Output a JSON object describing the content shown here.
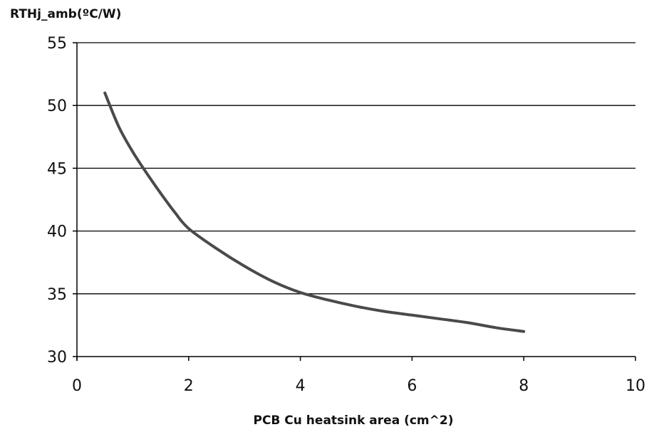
{
  "chart_data": {
    "type": "line",
    "title": "",
    "xlabel": "PCB Cu heatsink area (cm^2)",
    "ylabel": "RTHj_amb(ºC/W)",
    "xlim": [
      0,
      10
    ],
    "ylim": [
      30,
      55
    ],
    "xticks": [
      0,
      2,
      4,
      6,
      8,
      10
    ],
    "yticks": [
      30,
      35,
      40,
      45,
      50,
      55
    ],
    "grid": "horizontal",
    "legend": "none",
    "series": [
      {
        "color": "#4a4a4a",
        "x": [
          0.5,
          0.75,
          1.0,
          1.25,
          1.5,
          1.75,
          2.0,
          2.5,
          3.0,
          3.5,
          4.0,
          4.5,
          5.0,
          5.5,
          6.0,
          6.5,
          7.0,
          7.5,
          8.0
        ],
        "y": [
          51.0,
          48.3,
          46.3,
          44.6,
          43.0,
          41.5,
          40.2,
          38.6,
          37.2,
          36.0,
          35.1,
          34.5,
          34.0,
          33.6,
          33.3,
          33.0,
          32.7,
          32.3,
          32.0
        ]
      }
    ]
  }
}
